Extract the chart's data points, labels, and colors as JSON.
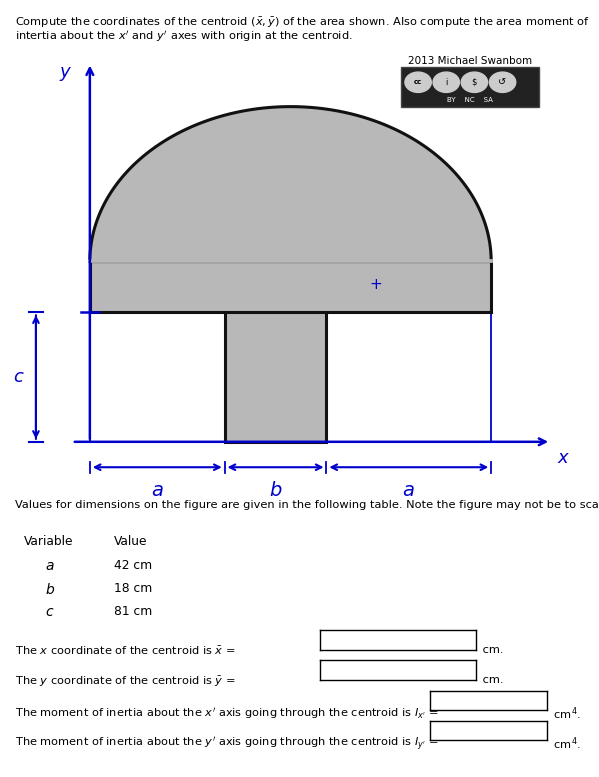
{
  "shape_color": "#b8b8b8",
  "shape_edge_color": "#111111",
  "axis_color": "#0000cc",
  "dim_color": "#0000cc",
  "table_title": "Values for dimensions on the figure are given in the following table. Note the figure may not be to scale.",
  "var_header": "Variable",
  "val_header": "Value",
  "variables": [
    "a",
    "b",
    "c"
  ],
  "values": [
    "42 cm",
    "18 cm",
    "81 cm"
  ],
  "q1_text": "The $x$ coordinate of the centroid is $\\bar{x}$ =",
  "q2_text": "The $y$ coordinate of the centroid is $\\bar{y}$ =",
  "q3_text": "The moment of inertia about the $x^{\\prime}$ axis going through the centroid is $I_{x^{\\prime}}$ =",
  "q4_text": "The moment of inertia about the $y^{\\prime}$ axis going through the centroid is $I_{y^{\\prime}}$ =",
  "unit1": "cm.",
  "unit2": "cm.",
  "unit3": "cm$^4$.",
  "unit4": "cm$^4$.",
  "bg_color": "#ffffff",
  "lw": 2.2
}
